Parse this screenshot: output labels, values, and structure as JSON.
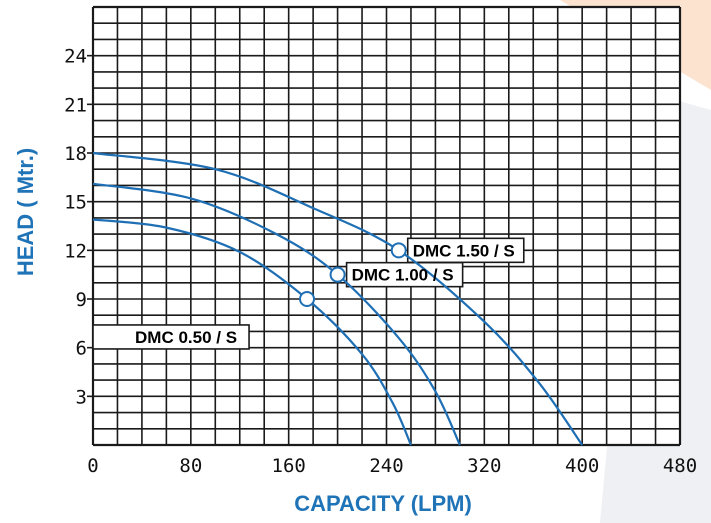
{
  "chart_data": {
    "type": "line",
    "xlabel": "CAPACITY (LPM)",
    "ylabel": "HEAD ( Mtr.)",
    "xlim": [
      0,
      480
    ],
    "ylim": [
      0,
      27
    ],
    "x_ticks": [
      "0",
      "80",
      "160",
      "240",
      "320",
      "400",
      "480"
    ],
    "y_ticks": [
      "3",
      "6",
      "9",
      "12",
      "15",
      "18",
      "21",
      "24"
    ],
    "grid": true,
    "series": [
      {
        "name": "DMC 0.50 / S",
        "color": "#1f6fb5",
        "points": [
          [
            0,
            13.9
          ],
          [
            60,
            13.4
          ],
          [
            120,
            11.9
          ],
          [
            175,
            9.0
          ],
          [
            220,
            5.6
          ],
          [
            245,
            2.6
          ],
          [
            260,
            0
          ]
        ],
        "marker": [
          175,
          9.0
        ],
        "label_position": "left"
      },
      {
        "name": "DMC 1.00 / S",
        "color": "#1f6fb5",
        "points": [
          [
            0,
            16.1
          ],
          [
            80,
            15.2
          ],
          [
            150,
            13.0
          ],
          [
            200,
            10.5
          ],
          [
            250,
            6.6
          ],
          [
            280,
            3.3
          ],
          [
            300,
            0
          ]
        ],
        "marker": [
          200,
          10.5
        ],
        "label_position": "right"
      },
      {
        "name": "DMC 1.50 / S",
        "color": "#1f6fb5",
        "points": [
          [
            0,
            18.0
          ],
          [
            100,
            17.0
          ],
          [
            180,
            14.6
          ],
          [
            250,
            12.0
          ],
          [
            320,
            7.6
          ],
          [
            365,
            3.8
          ],
          [
            400,
            0
          ]
        ],
        "marker": [
          250,
          12.0
        ],
        "label_position": "right"
      }
    ]
  }
}
